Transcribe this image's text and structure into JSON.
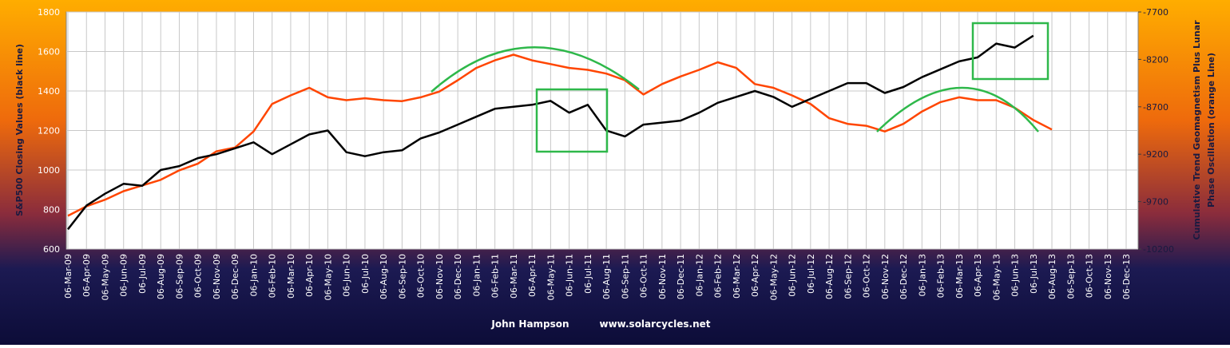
{
  "chart_data": {
    "type": "line",
    "ylabel": "S&P500 Closing  Values (black line)",
    "y2label_lines": [
      "Cumulative Trend Geomagnetism Plus Lunar",
      "Phase Oscillation (orange Line)"
    ],
    "author": "John Hampson",
    "website": "www.solarcycles.net",
    "categories": [
      "06-Mar-09",
      "06-Apr-09",
      "06-May-09",
      "06-Jun-09",
      "06-Jul-09",
      "06-Aug-09",
      "06-Sep-09",
      "06-Oct-09",
      "06-Nov-09",
      "06-Dec-09",
      "06-Jan-10",
      "06-Feb-10",
      "06-Mar-10",
      "06-Apr-10",
      "06-May-10",
      "06-Jun-10",
      "06-Jul-10",
      "06-Aug-10",
      "06-Sep-10",
      "06-Oct-10",
      "06-Nov-10",
      "06-Dec-10",
      "06-Jan-11",
      "06-Feb-11",
      "06-Mar-11",
      "06-Apr-11",
      "06-May-11",
      "06-Jun-11",
      "06-Jul-11",
      "06-Aug-11",
      "06-Sep-11",
      "06-Oct-11",
      "06-Nov-11",
      "06-Dec-11",
      "06-Jan-12",
      "06-Feb-12",
      "06-Mar-12",
      "06-Apr-12",
      "06-May-12",
      "06-Jun-12",
      "06-Jul-12",
      "06-Aug-12",
      "06-Sep-12",
      "06-Oct-12",
      "06-Nov-12",
      "06-Dec-12",
      "06-Jan-13",
      "06-Feb-13",
      "06-Mar-13",
      "06-Apr-13",
      "06-May-13",
      "06-Jun-13",
      "06-Jul-13",
      "06-Aug-13",
      "06-Sep-13",
      "06-Oct-13",
      "06-Nov-13",
      "06-Dec-13"
    ],
    "series": [
      {
        "name": "S&P500",
        "color": "#000000",
        "values": [
          700,
          820,
          880,
          930,
          920,
          1000,
          1020,
          1060,
          1080,
          1110,
          1140,
          1080,
          1130,
          1180,
          1200,
          1090,
          1070,
          1090,
          1100,
          1160,
          1190,
          1230,
          1270,
          1310,
          1320,
          1330,
          1350,
          1290,
          1330,
          1200,
          1170,
          1230,
          1240,
          1250,
          1290,
          1340,
          1370,
          1400,
          1370,
          1320,
          1360,
          1400,
          1440,
          1440,
          1390,
          1420,
          1470,
          1510,
          1550,
          1570,
          1640,
          1620,
          1680,
          null,
          null,
          null,
          null,
          null
        ]
      },
      {
        "name": "Geomagnetism",
        "color": "#ff4500",
        "axis": "y2",
        "values": [
          -9850,
          -9750,
          -9680,
          -9590,
          -9530,
          -9470,
          -9370,
          -9300,
          -9170,
          -9130,
          -8960,
          -8670,
          -8580,
          -8500,
          -8600,
          -8630,
          -8610,
          -8630,
          -8640,
          -8600,
          -8540,
          -8420,
          -8290,
          -8210,
          -8150,
          -8210,
          -8250,
          -8290,
          -8310,
          -8350,
          -8420,
          -8570,
          -8460,
          -8380,
          -8310,
          -8230,
          -8290,
          -8460,
          -8500,
          -8580,
          -8670,
          -8820,
          -8880,
          -8900,
          -8960,
          -8880,
          -8750,
          -8650,
          -8600,
          -8630,
          -8630,
          -8710,
          -8840,
          -8940,
          null,
          null,
          null,
          null
        ]
      }
    ],
    "ylim": [
      600,
      1800
    ],
    "yticks": [
      600,
      800,
      1000,
      1200,
      1400,
      1600,
      1800
    ],
    "y2lim": [
      -10200,
      -7700
    ],
    "y2ticks": [
      -10200,
      -9700,
      -9200,
      -8700,
      -8200,
      -7700
    ],
    "grid": true
  }
}
